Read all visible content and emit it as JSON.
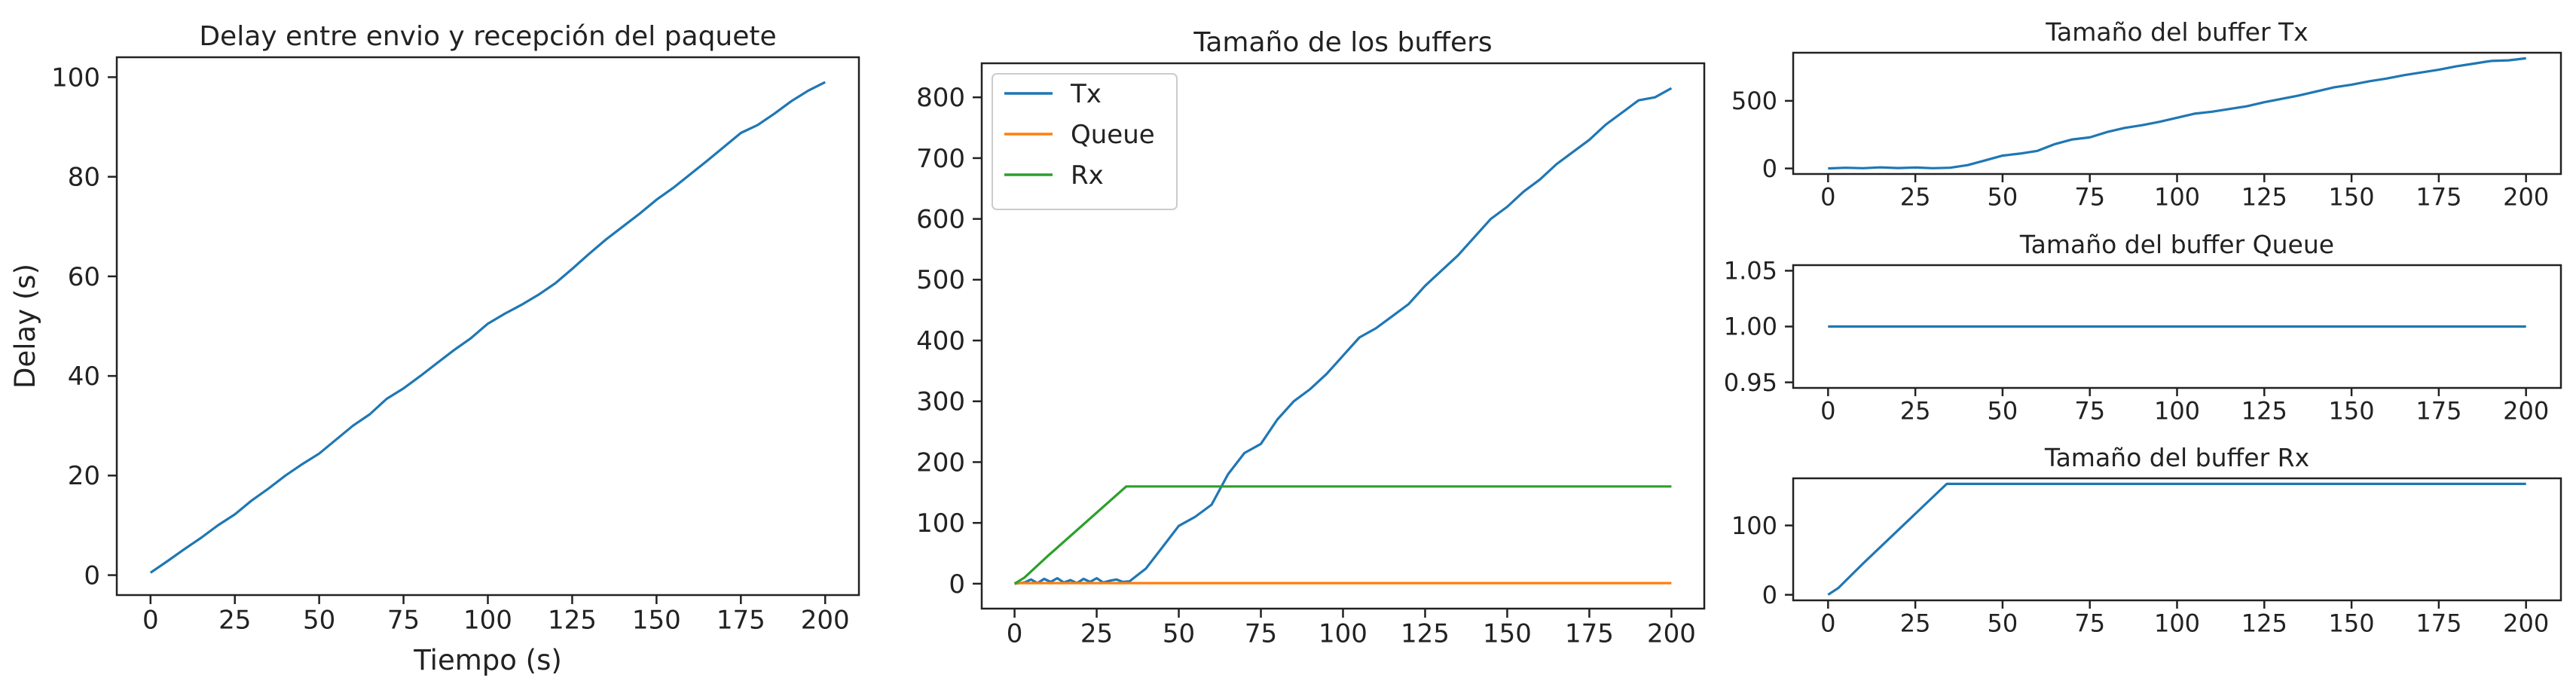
{
  "chart_data": [
    {
      "type": "line",
      "title": "Delay entre envio y recepción del paquete",
      "xlabel": "Tiempo (s)",
      "ylabel": "Delay (s)",
      "xlim": [
        -10,
        210
      ],
      "ylim": [
        -4,
        104
      ],
      "xticks": [
        0,
        25,
        50,
        75,
        100,
        125,
        150,
        175,
        200
      ],
      "yticks": [
        0,
        20,
        40,
        60,
        80,
        100
      ],
      "grid": false,
      "series": [
        {
          "color": "#1f77b4",
          "x": [
            0,
            5,
            10,
            15,
            20,
            25,
            30,
            35,
            40,
            45,
            50,
            55,
            60,
            65,
            70,
            75,
            80,
            85,
            90,
            95,
            100,
            105,
            110,
            115,
            120,
            125,
            130,
            135,
            140,
            145,
            150,
            155,
            160,
            165,
            170,
            175,
            180,
            185,
            190,
            195,
            200
          ],
          "y": [
            0.5,
            2.8,
            5.2,
            7.5,
            10.0,
            12.2,
            15.0,
            17.4,
            20.0,
            22.3,
            24.4,
            27.2,
            30.0,
            32.3,
            35.4,
            37.5,
            40.0,
            42.6,
            45.2,
            47.6,
            50.5,
            52.5,
            54.3,
            56.3,
            58.6,
            61.5,
            64.5,
            67.4,
            70.0,
            72.6,
            75.4,
            77.8,
            80.5,
            83.2,
            86.0,
            88.8,
            90.4,
            92.7,
            95.2,
            97.3,
            99.0
          ]
        }
      ]
    },
    {
      "type": "line",
      "title": "Tamaño de los buffers",
      "xlabel": "",
      "ylabel": "",
      "xlim": [
        -10,
        210
      ],
      "ylim": [
        -41,
        856
      ],
      "xticks": [
        0,
        25,
        50,
        75,
        100,
        125,
        150,
        175,
        200
      ],
      "yticks": [
        0,
        100,
        200,
        300,
        400,
        500,
        600,
        700,
        800
      ],
      "grid": false,
      "legend": "upper left",
      "series": [
        {
          "name": "Tx",
          "color": "#1f77b4",
          "x": [
            0,
            3,
            5,
            7,
            9,
            11,
            13,
            15,
            17,
            19,
            21,
            23,
            25,
            27,
            29,
            31,
            33,
            35,
            40,
            45,
            50,
            55,
            60,
            65,
            70,
            75,
            80,
            85,
            90,
            95,
            100,
            105,
            110,
            115,
            120,
            125,
            130,
            135,
            140,
            145,
            150,
            155,
            160,
            165,
            170,
            175,
            180,
            185,
            190,
            195,
            200
          ],
          "y": [
            0,
            2,
            7,
            1,
            8,
            3,
            9,
            2,
            6,
            1,
            8,
            3,
            9,
            2,
            5,
            7,
            3,
            4,
            25,
            60,
            95,
            110,
            130,
            180,
            215,
            230,
            270,
            300,
            320,
            345,
            375,
            405,
            420,
            440,
            460,
            490,
            515,
            540,
            570,
            600,
            620,
            645,
            665,
            690,
            710,
            730,
            755,
            775,
            795,
            800,
            815
          ]
        },
        {
          "name": "Queue",
          "color": "#ff7f0e",
          "x": [
            0,
            200
          ],
          "y": [
            1,
            1
          ]
        },
        {
          "name": "Rx",
          "color": "#2ca02c",
          "x": [
            0,
            3,
            10,
            34,
            200
          ],
          "y": [
            0,
            10,
            45,
            160,
            160
          ]
        }
      ]
    },
    {
      "type": "line",
      "title": "Tamaño del buffer Tx",
      "xlabel": "",
      "ylabel": "",
      "xlim": [
        -10,
        210
      ],
      "ylim": [
        -41,
        856
      ],
      "xticks": [
        0,
        25,
        50,
        75,
        100,
        125,
        150,
        175,
        200
      ],
      "yticks": [
        0,
        500
      ],
      "grid": false,
      "series": [
        {
          "color": "#1f77b4",
          "x": [
            0,
            5,
            10,
            15,
            20,
            25,
            30,
            35,
            40,
            45,
            50,
            55,
            60,
            65,
            70,
            75,
            80,
            85,
            90,
            95,
            100,
            105,
            110,
            115,
            120,
            125,
            130,
            135,
            140,
            145,
            150,
            155,
            160,
            165,
            170,
            175,
            180,
            185,
            190,
            195,
            200
          ],
          "y": [
            0,
            5,
            2,
            8,
            3,
            7,
            2,
            5,
            25,
            60,
            95,
            110,
            130,
            180,
            215,
            230,
            270,
            300,
            320,
            345,
            375,
            405,
            420,
            440,
            460,
            490,
            515,
            540,
            570,
            600,
            620,
            645,
            665,
            690,
            710,
            730,
            755,
            775,
            795,
            800,
            815
          ]
        }
      ]
    },
    {
      "type": "line",
      "title": "Tamaño del buffer Queue",
      "xlabel": "",
      "ylabel": "",
      "xlim": [
        -10,
        210
      ],
      "ylim": [
        0.945,
        1.055
      ],
      "xticks": [
        0,
        25,
        50,
        75,
        100,
        125,
        150,
        175,
        200
      ],
      "yticks": [
        0.95,
        1.0,
        1.05
      ],
      "ytick_labels": [
        "0.95",
        "1.00",
        "1.05"
      ],
      "grid": false,
      "series": [
        {
          "color": "#1f77b4",
          "x": [
            0,
            200
          ],
          "y": [
            1,
            1
          ]
        }
      ]
    },
    {
      "type": "line",
      "title": "Tamaño del buffer Rx",
      "xlabel": "",
      "ylabel": "",
      "xlim": [
        -10,
        210
      ],
      "ylim": [
        -8,
        168
      ],
      "xticks": [
        0,
        25,
        50,
        75,
        100,
        125,
        150,
        175,
        200
      ],
      "yticks": [
        0,
        100
      ],
      "grid": false,
      "series": [
        {
          "color": "#1f77b4",
          "x": [
            0,
            3,
            10,
            34,
            200
          ],
          "y": [
            0,
            10,
            45,
            160,
            160
          ]
        }
      ]
    }
  ]
}
